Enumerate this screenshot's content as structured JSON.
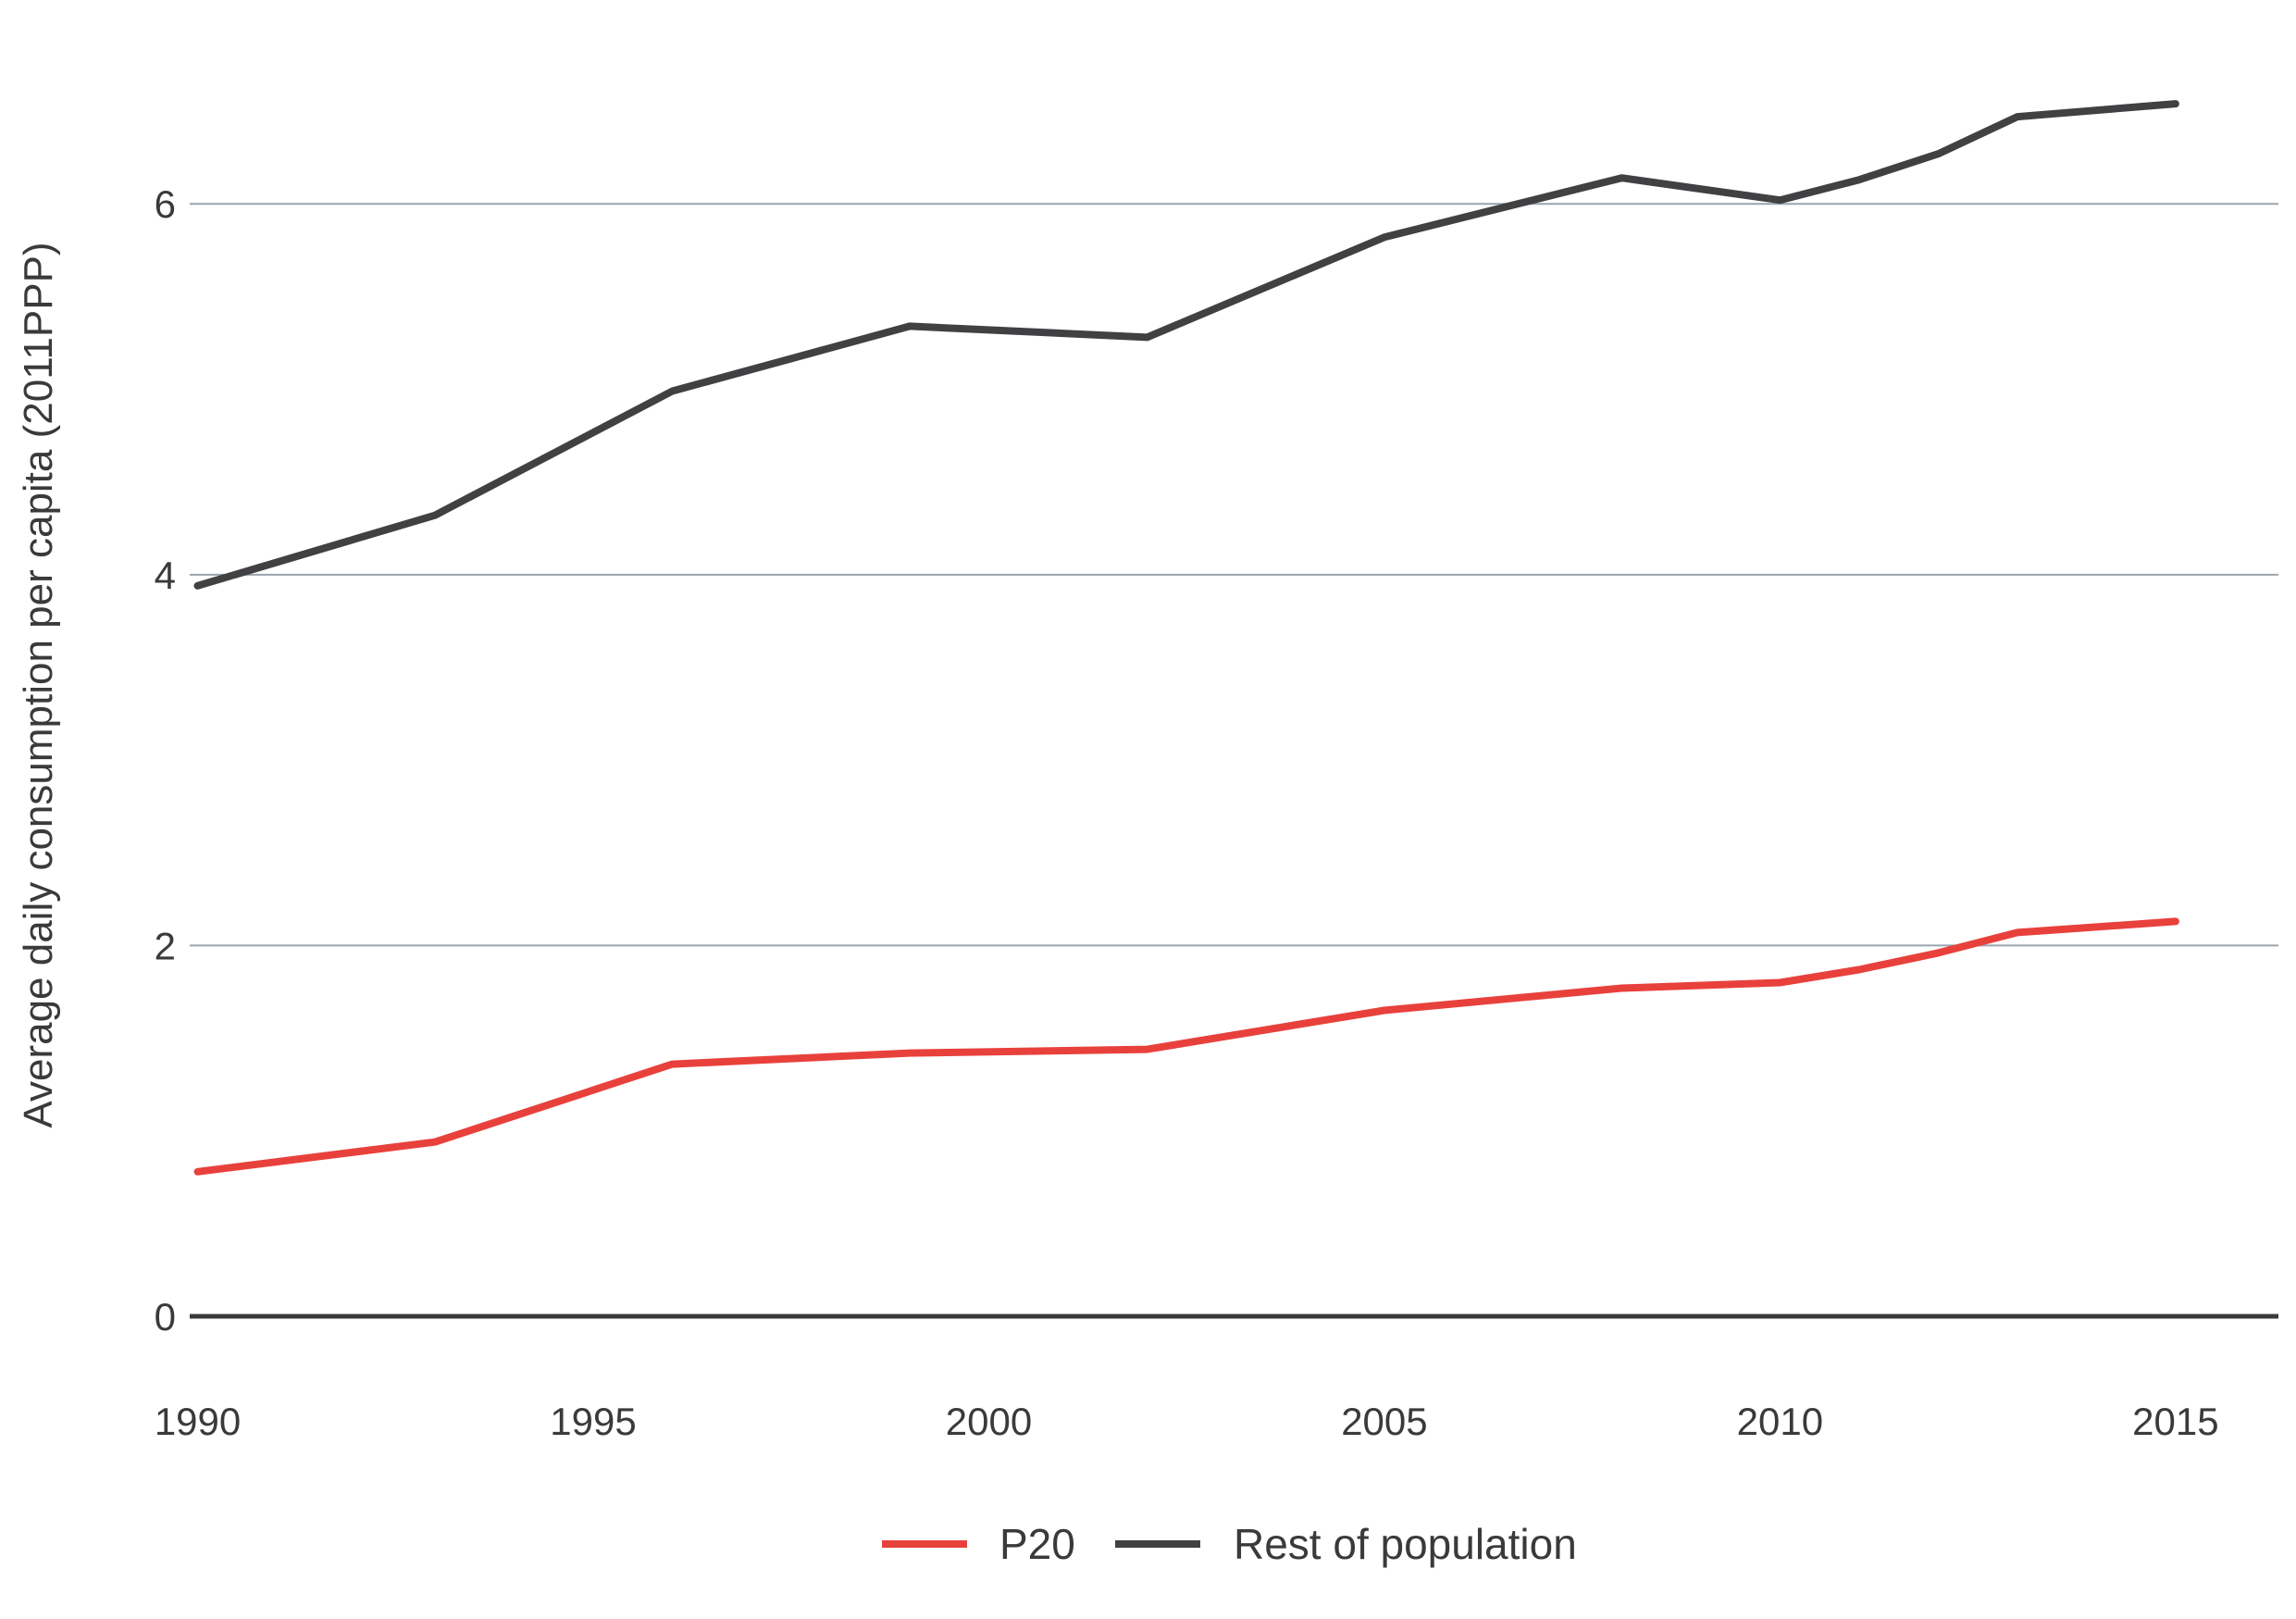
{
  "chart_data": {
    "type": "line",
    "title": "",
    "xlabel": "",
    "ylabel": "Average daily consumption per capita (2011PPP)",
    "xlim": [
      1989.9,
      2016.3
    ],
    "ylim": [
      0,
      6.8
    ],
    "x_ticks": [
      1990,
      1995,
      2000,
      2005,
      2010,
      2015
    ],
    "y_ticks": [
      0,
      2,
      4,
      6
    ],
    "grid": "horizontal",
    "legend_position": "bottom",
    "colors": {
      "P20": "#e8413c",
      "Rest of population": "#414042",
      "grid": "#9aa4ae",
      "baseline": "#3a3a3a"
    },
    "series": [
      {
        "name": "P20",
        "x": [
          1990,
          1993,
          1996,
          1999,
          2002,
          2005,
          2008,
          2010,
          2011,
          2012,
          2013,
          2015
        ],
        "y": [
          0.78,
          0.94,
          1.36,
          1.42,
          1.44,
          1.65,
          1.77,
          1.8,
          1.87,
          1.96,
          2.07,
          2.13
        ]
      },
      {
        "name": "Rest of population",
        "x": [
          1990,
          1993,
          1996,
          1999,
          2002,
          2005,
          2008,
          2010,
          2011,
          2012,
          2013,
          2015
        ],
        "y": [
          3.94,
          4.32,
          4.99,
          5.34,
          5.28,
          5.82,
          6.14,
          6.02,
          6.13,
          6.27,
          6.47,
          6.54
        ]
      }
    ]
  }
}
